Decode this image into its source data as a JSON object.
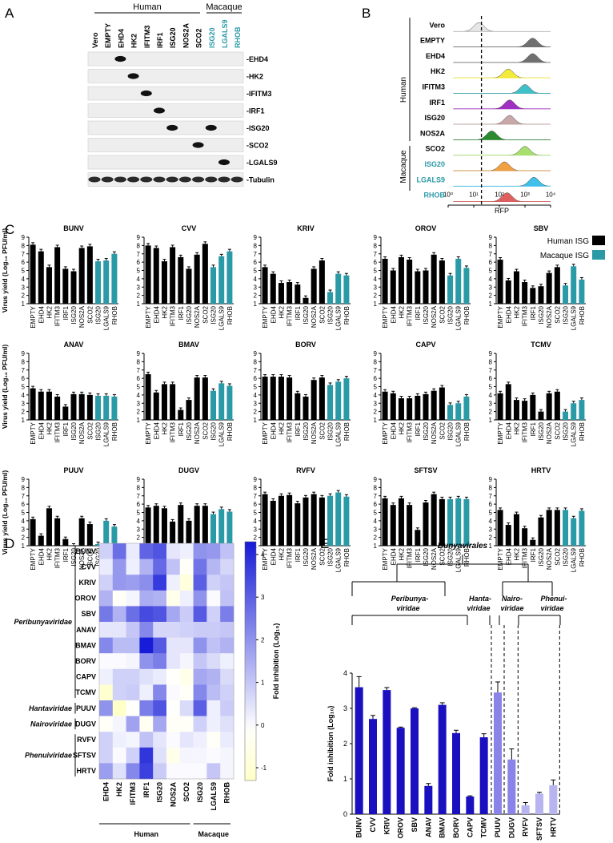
{
  "panel_letters": {
    "a": "A",
    "b": "B",
    "c": "C",
    "d": "D",
    "e": "E"
  },
  "panel_a": {
    "group_human": "Human",
    "group_macaque": "Macaque",
    "lanes": [
      "Vero",
      "EMPTY",
      "EHD4",
      "HK2",
      "IFITM3",
      "IRF1",
      "ISG20",
      "NOS2A",
      "SCO2",
      "ISG20",
      "LGALS9",
      "RHOB"
    ],
    "lane_colors": [
      "#000000",
      "#000000",
      "#000000",
      "#000000",
      "#000000",
      "#000000",
      "#000000",
      "#000000",
      "#000000",
      "#2a9aa7",
      "#2a9aa7",
      "#2a9aa7"
    ],
    "blots": [
      {
        "label": "-EHD4",
        "bands": [
          2
        ]
      },
      {
        "label": "-HK2",
        "bands": [
          3
        ]
      },
      {
        "label": "-IFITM3",
        "bands": [
          4
        ]
      },
      {
        "label": "-IRF1",
        "bands": [
          5
        ]
      },
      {
        "label": "-ISG20",
        "bands": [
          6,
          9
        ]
      },
      {
        "label": "-SCO2",
        "bands": [
          8
        ]
      },
      {
        "label": "-LGALS9",
        "bands": [
          10
        ]
      },
      {
        "label": "-Tubulin",
        "bands": [
          0,
          1,
          2,
          3,
          4,
          5,
          6,
          7,
          8,
          9,
          10,
          11
        ]
      }
    ]
  },
  "panel_b": {
    "group_human": "Human",
    "group_macaque": "Macaque",
    "rows": [
      {
        "label": "Vero",
        "color": "#e6e6e6",
        "peak": 1.2,
        "lbl": "#000000"
      },
      {
        "label": "EMPTY",
        "color": "#707070",
        "peak": 3.3,
        "lbl": "#000000"
      },
      {
        "label": "EHD4",
        "color": "#707070",
        "peak": 3.3,
        "lbl": "#000000"
      },
      {
        "label": "HK2",
        "color": "#f4ea3a",
        "peak": 2.35,
        "lbl": "#000000"
      },
      {
        "label": "IFITM3",
        "color": "#40c0c8",
        "peak": 3.0,
        "lbl": "#000000"
      },
      {
        "label": "IRF1",
        "color": "#a030c0",
        "peak": 2.4,
        "lbl": "#000000"
      },
      {
        "label": "ISG20",
        "color": "#c8a8a8",
        "peak": 2.4,
        "lbl": "#000000"
      },
      {
        "label": "NOS2A",
        "color": "#2a8a30",
        "peak": 1.7,
        "lbl": "#000000"
      },
      {
        "label": "SCO2",
        "color": "#a8e070",
        "peak": 3.0,
        "lbl": "#000000"
      },
      {
        "label": "ISG20",
        "color": "#f0a040",
        "peak": 2.2,
        "lbl": "#2a9aa7"
      },
      {
        "label": "LGALS9",
        "color": "#40c0e8",
        "peak": 3.35,
        "lbl": "#2a9aa7"
      },
      {
        "label": "RHOB",
        "color": "#e06060",
        "peak": 2.3,
        "lbl": "#2a9aa7"
      }
    ],
    "ticks": [
      "10⁰",
      "10¹",
      "10²",
      "10³",
      "10⁴"
    ],
    "xlabel": "RFP",
    "cutoff_log": 1.3
  },
  "chart_data": [
    {
      "type": "bar",
      "ylabel": "Virus yield (Log₁₀ PFU/ml)",
      "ylim": [
        1,
        9
      ],
      "categories": [
        "EMPTY",
        "EHD4",
        "HK2",
        "IFITM3",
        "IRF1",
        "ISG20",
        "NOS2A",
        "SCO2",
        "ISG20",
        "LGALS9",
        "RHOB"
      ],
      "series_colors": {
        "human": "#000000",
        "macaque": "#2a9aa7"
      },
      "legend": {
        "human": "Human ISG",
        "macaque": "Macaque ISG"
      },
      "panels": [
        {
          "title": "BUNV",
          "values": [
            8.1,
            7.3,
            5.4,
            7.8,
            5.2,
            4.9,
            7.7,
            7.9,
            6.1,
            6.2,
            7.0
          ]
        },
        {
          "title": "CVV",
          "values": [
            8.0,
            7.7,
            6.1,
            7.8,
            6.6,
            5.2,
            6.9,
            8.2,
            5.4,
            6.7,
            7.3
          ]
        },
        {
          "title": "KRIV",
          "values": [
            5.4,
            4.6,
            3.5,
            3.6,
            3.3,
            1.7,
            5.2,
            6.2,
            2.4,
            4.6,
            4.4
          ]
        },
        {
          "title": "OROV",
          "values": [
            6.4,
            5.0,
            6.6,
            6.3,
            4.9,
            5.0,
            6.9,
            6.2,
            4.4,
            6.4,
            5.3
          ]
        },
        {
          "title": "SBV",
          "values": [
            6.3,
            3.8,
            4.9,
            3.6,
            2.9,
            3.1,
            4.7,
            5.4,
            3.2,
            5.5,
            3.9
          ]
        },
        {
          "title": "ANAV",
          "values": [
            4.8,
            4.4,
            4.4,
            3.8,
            2.6,
            4.1,
            4.1,
            4.0,
            3.9,
            3.9,
            3.8
          ]
        },
        {
          "title": "BMAV",
          "values": [
            6.5,
            4.3,
            5.3,
            5.3,
            2.2,
            3.4,
            6.1,
            6.1,
            4.5,
            5.4,
            5.1
          ]
        },
        {
          "title": "BORV",
          "values": [
            6.2,
            6.2,
            6.2,
            6.1,
            4.2,
            3.8,
            5.8,
            6.1,
            5.2,
            5.6,
            6.0
          ]
        },
        {
          "title": "CAPV",
          "values": [
            4.4,
            4.2,
            3.6,
            3.6,
            3.9,
            4.1,
            4.5,
            4.9,
            2.8,
            3.0,
            3.8
          ]
        },
        {
          "title": "TCMV",
          "values": [
            4.2,
            5.3,
            3.4,
            3.3,
            4.0,
            2.0,
            4.2,
            4.4,
            2.0,
            3.0,
            3.4
          ]
        },
        {
          "title": "PUUV",
          "values": [
            4.2,
            2.2,
            5.5,
            4.3,
            1.8,
            1.0,
            4.3,
            3.6,
            1.2,
            4.0,
            3.3
          ]
        },
        {
          "title": "DUGV",
          "values": [
            5.6,
            5.8,
            5.5,
            3.9,
            5.9,
            4.0,
            5.8,
            5.8,
            4.8,
            5.4,
            5.1
          ]
        },
        {
          "title": "RVFV",
          "values": [
            7.2,
            6.4,
            7.0,
            7.1,
            6.1,
            6.8,
            7.2,
            6.8,
            7.0,
            7.4,
            6.9
          ]
        },
        {
          "title": "SFTSV",
          "values": [
            6.7,
            5.9,
            6.7,
            5.9,
            2.9,
            6.2,
            7.2,
            6.6,
            6.6,
            6.7,
            6.6
          ]
        },
        {
          "title": "HRTV",
          "values": [
            5.3,
            3.5,
            4.8,
            3.1,
            1.7,
            4.4,
            5.3,
            5.3,
            5.3,
            4.3,
            5.2
          ]
        }
      ]
    },
    {
      "type": "heatmap",
      "rows": [
        "BUNV",
        "CVV",
        "KRIV",
        "OROV",
        "SBV",
        "ANAV",
        "BMAV",
        "BORV",
        "CAPV",
        "TCMV",
        "PUUV",
        "DUGV",
        "RVFV",
        "SFTSV",
        "HRTV"
      ],
      "columns": [
        "EHD4",
        "HK2",
        "IFITM3",
        "IRF1",
        "ISG20",
        "NOS2A",
        "SCO2",
        "ISG20",
        "LGALS9",
        "RHOB"
      ],
      "families": [
        {
          "name": "Peribunyaviridae",
          "from": 0,
          "to": 9
        },
        {
          "name": "Hantaviridae",
          "from": 10,
          "to": 10
        },
        {
          "name": "Nairoviridae",
          "from": 11,
          "to": 11
        },
        {
          "name": "Phenuiviridae",
          "from": 12,
          "to": 14
        }
      ],
      "column_groups": [
        {
          "name": "Human",
          "from": 0,
          "to": 6
        },
        {
          "name": "Macaque",
          "from": 7,
          "to": 9
        }
      ],
      "colorbar": {
        "min": -1.3,
        "max": 4.3,
        "ticks": [
          4,
          3,
          2,
          1,
          0,
          -1
        ],
        "label": "Fold inhibition (Log₁₀)"
      },
      "values": [
        [
          0.8,
          2.7,
          0.3,
          2.9,
          3.2,
          0.4,
          0.2,
          2.0,
          1.9,
          1.1
        ],
        [
          0.3,
          1.9,
          0.2,
          1.4,
          2.8,
          1.1,
          -0.2,
          2.6,
          1.3,
          0.7
        ],
        [
          0.8,
          1.9,
          1.8,
          2.1,
          3.7,
          0.2,
          -0.8,
          3.0,
          0.8,
          1.0
        ],
        [
          1.4,
          -0.2,
          0.1,
          1.5,
          1.4,
          -0.5,
          0.2,
          2.0,
          0.0,
          1.1
        ],
        [
          2.5,
          1.4,
          2.7,
          3.4,
          3.2,
          1.6,
          0.9,
          3.1,
          0.8,
          2.4
        ],
        [
          0.4,
          0.4,
          1.0,
          2.2,
          0.7,
          0.7,
          0.8,
          0.9,
          0.9,
          1.0
        ],
        [
          2.2,
          1.2,
          1.2,
          4.3,
          3.1,
          0.4,
          0.4,
          2.0,
          1.1,
          1.4
        ],
        [
          0.0,
          0.0,
          0.1,
          2.0,
          2.4,
          0.4,
          0.1,
          1.0,
          0.6,
          0.2
        ],
        [
          0.2,
          0.8,
          0.8,
          0.5,
          0.3,
          -0.1,
          -0.5,
          1.6,
          1.4,
          0.6
        ],
        [
          -1.1,
          0.8,
          0.9,
          0.2,
          2.2,
          0.0,
          -0.2,
          2.2,
          1.2,
          0.8
        ],
        [
          2.0,
          -1.3,
          -0.1,
          2.4,
          3.2,
          -0.1,
          0.6,
          3.0,
          0.2,
          0.9
        ],
        [
          -0.2,
          0.1,
          1.7,
          -0.3,
          1.6,
          -0.2,
          -0.2,
          0.8,
          0.2,
          0.5
        ],
        [
          0.8,
          0.2,
          0.1,
          1.1,
          0.4,
          0.0,
          0.4,
          0.2,
          -0.2,
          0.3
        ],
        [
          0.8,
          0.0,
          0.8,
          3.8,
          0.5,
          -0.5,
          0.1,
          0.1,
          0.0,
          0.1
        ],
        [
          1.8,
          0.5,
          2.2,
          3.6,
          0.9,
          0.0,
          0.0,
          0.0,
          1.0,
          0.1
        ]
      ]
    },
    {
      "type": "bar",
      "ylabel": "Fold inhibition (Log₁₀)",
      "ylim": [
        0,
        4
      ],
      "categories": [
        "BUNV",
        "CVV",
        "KRIV",
        "OROV",
        "SBV",
        "ANAV",
        "BMAV",
        "BORV",
        "CAPV",
        "TCMV",
        "PUUV",
        "DUGV",
        "RVFV",
        "SFTSV",
        "HRTV"
      ],
      "values": [
        3.6,
        2.7,
        3.52,
        2.45,
        3.0,
        0.8,
        3.1,
        2.3,
        0.5,
        2.18,
        3.45,
        1.55,
        0.25,
        0.58,
        0.82
      ],
      "errors": [
        0.3,
        0.1,
        0.07,
        0.02,
        0.02,
        0.07,
        0.06,
        0.08,
        0.02,
        0.1,
        0.3,
        0.3,
        0.08,
        0.04,
        0.15
      ],
      "colors": [
        "#1a10c0",
        "#1a10c0",
        "#1a10c0",
        "#1a10c0",
        "#1a10c0",
        "#1a10c0",
        "#1a10c0",
        "#1a10c0",
        "#1a10c0",
        "#1a10c0",
        "#8a84e8",
        "#8a84e8",
        "#b8b4f0",
        "#b8b4f0",
        "#b8b4f0"
      ],
      "tree": {
        "root": "Bunyavirales",
        "clades": [
          "Peribunya-",
          "viridae",
          "Hanta-",
          "viridae",
          "Nairo-",
          "viridae",
          "Phenui-",
          "viridae"
        ]
      }
    }
  ]
}
